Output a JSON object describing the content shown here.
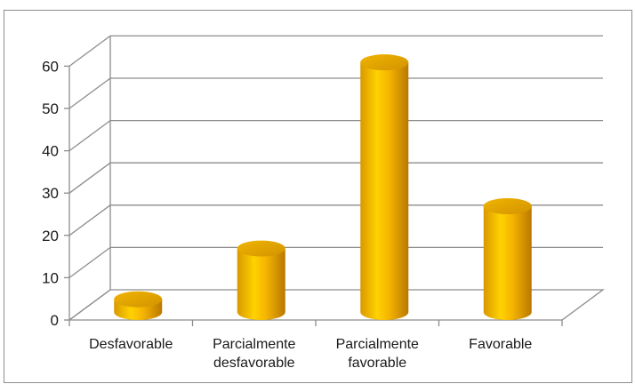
{
  "chart_data": {
    "type": "bar",
    "style": "3d-cylinder",
    "categories": [
      [
        "Desfavorable"
      ],
      [
        "Parcialmente",
        "desfavorable"
      ],
      [
        "Parcialmente",
        "favorable"
      ],
      [
        "Favorable"
      ]
    ],
    "values": [
      3,
      15,
      59,
      25
    ],
    "y_ticks": [
      "0",
      "10",
      "20",
      "30",
      "40",
      "50",
      "60"
    ],
    "ylim": [
      0,
      60
    ],
    "title": "",
    "xlabel": "",
    "ylabel": "",
    "grid": true,
    "legend": "none",
    "colors": {
      "bar_light": "#ffd200",
      "bar_mid": "#f5b400",
      "bar_dark": "#b97800",
      "bar_top": "#e8a800",
      "grid": "#8c8c8c",
      "axis": "#8c8c8c"
    }
  }
}
